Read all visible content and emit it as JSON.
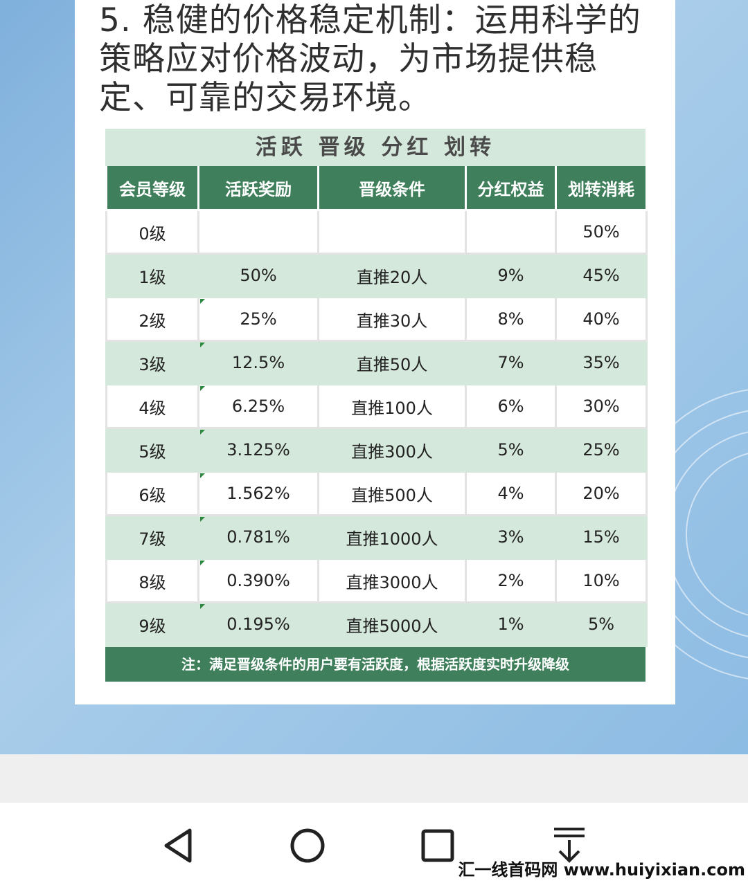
{
  "heading": "5. 稳健的价格稳定机制：运用科学的策略应对价格波动，为市场提供稳定、可靠的交易环境。",
  "table": {
    "title": "活跃  晋级  分红  划转",
    "headers": [
      "会员等级",
      "活跃奖励",
      "晋级条件",
      "分红权益",
      "划转消耗"
    ],
    "rows": [
      [
        "0级",
        "",
        "",
        "",
        "50%"
      ],
      [
        "1级",
        "50%",
        "直推20人",
        "9%",
        "45%"
      ],
      [
        "2级",
        "25%",
        "直推30人",
        "8%",
        "40%"
      ],
      [
        "3级",
        "12.5%",
        "直推50人",
        "7%",
        "35%"
      ],
      [
        "4级",
        "6.25%",
        "直推100人",
        "6%",
        "30%"
      ],
      [
        "5级",
        "3.125%",
        "直推300人",
        "5%",
        "25%"
      ],
      [
        "6级",
        "1.562%",
        "直推500人",
        "4%",
        "20%"
      ],
      [
        "7级",
        "0.781%",
        "直推1000人",
        "3%",
        "15%"
      ],
      [
        "8级",
        "0.390%",
        "直推3000人",
        "2%",
        "10%"
      ],
      [
        "9级",
        "0.195%",
        "直推5000人",
        "1%",
        "5%"
      ]
    ],
    "note": "注：满足晋级条件的用户要有活跃度，根据活跃度实时升级降级"
  },
  "navbar": {
    "icons": [
      "back-triangle-icon",
      "home-circle-icon",
      "recents-square-icon",
      "download-arrow-icon"
    ]
  },
  "watermark": "汇一线首码网 www.huiyixian.com",
  "colors": {
    "header_green": "#3f7f5b",
    "row_light_green": "#d5e8dc",
    "background_blue": "#8cbbe3"
  }
}
